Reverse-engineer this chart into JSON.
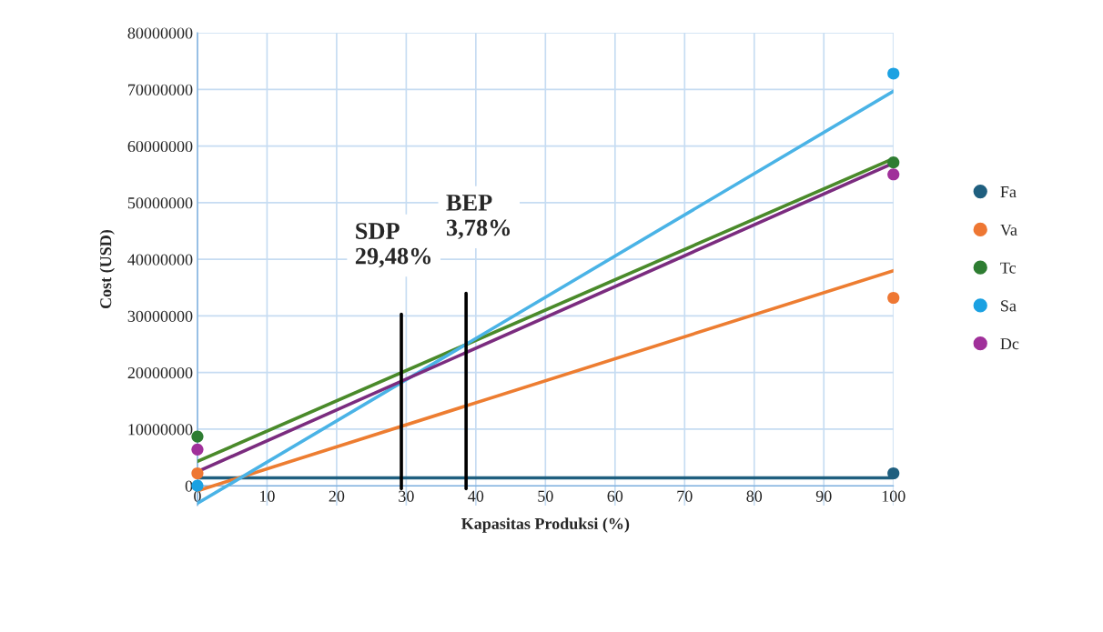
{
  "chart_data": {
    "type": "scatter",
    "xlabel": "Kapasitas Produksi (%)",
    "ylabel": "Cost (USD)",
    "xlim": [
      0,
      100
    ],
    "xticks": [
      0,
      10,
      20,
      30,
      40,
      50,
      60,
      70,
      80,
      90,
      100
    ],
    "ylim": [
      -3500000,
      80000000
    ],
    "yticks": [
      0,
      10000000,
      20000000,
      30000000,
      40000000,
      50000000,
      60000000,
      70000000,
      80000000
    ],
    "grid": true,
    "legend": "right",
    "marker": "circle",
    "series": [
      {
        "type": "line",
        "marker": "none",
        "color": "#1f5f7f",
        "x": [
          0,
          100
        ],
        "values": [
          1400000,
          1400000
        ]
      },
      {
        "type": "line",
        "marker": "none",
        "color": "#ed7d31",
        "x": [
          0,
          100
        ],
        "values": [
          -900000,
          38000000
        ]
      },
      {
        "type": "line",
        "marker": "none",
        "color": "#4a8a2a",
        "x": [
          0,
          100
        ],
        "values": [
          4300000,
          57800000
        ]
      },
      {
        "type": "line",
        "marker": "none",
        "color": "#4ab3e6",
        "x": [
          0,
          100
        ],
        "values": [
          -3100000,
          69700000
        ]
      },
      {
        "type": "line",
        "marker": "none",
        "color": "#7b2c7f",
        "x": [
          0,
          100
        ],
        "values": [
          2500000,
          57000000
        ]
      },
      {
        "type": "line",
        "marker": "none",
        "color": "#000000",
        "x": [
          29.3,
          29.3
        ],
        "values": [
          -500000,
          30300000
        ]
      },
      {
        "type": "line",
        "marker": "none",
        "color": "#000000",
        "x": [
          38.6,
          38.6
        ],
        "values": [
          -500000,
          34000000
        ]
      },
      {
        "name": "Fa",
        "color": "#1f5f7f",
        "x": [
          100
        ],
        "values": [
          2200000
        ]
      },
      {
        "name": "Va",
        "color": "#ee7733",
        "x": [
          0,
          100
        ],
        "values": [
          2200000,
          33200000
        ]
      },
      {
        "name": "Tc",
        "color": "#2e7d32",
        "x": [
          0,
          100
        ],
        "values": [
          8700000,
          57100000
        ]
      },
      {
        "name": "Sa",
        "color": "#1ba1e2",
        "x": [
          0,
          100
        ],
        "values": [
          0,
          72800000
        ]
      },
      {
        "name": "Dc",
        "color": "#a0309a",
        "x": [
          0,
          100
        ],
        "values": [
          6400000,
          55000000
        ]
      }
    ],
    "annotations": [
      "SDP\n29,48%",
      "BEP\n3,78%"
    ]
  }
}
